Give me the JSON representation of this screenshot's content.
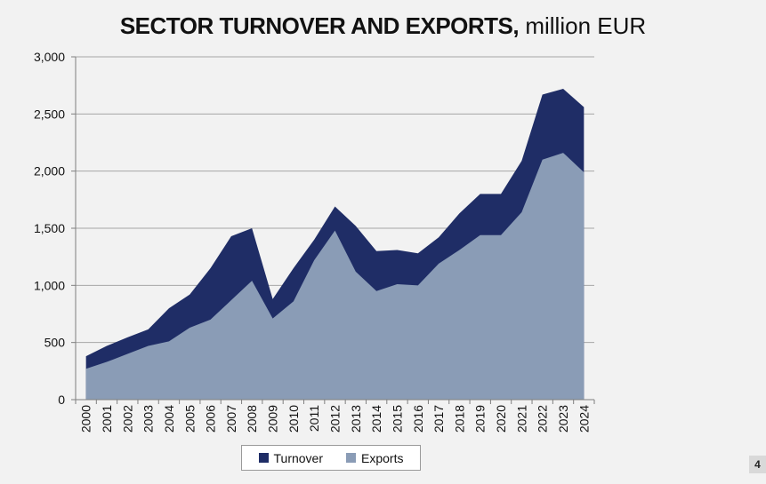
{
  "title": {
    "main": "SECTOR TURNOVER AND EXPORTS,",
    "unit": " million EUR"
  },
  "page_number": "4",
  "colors": {
    "turnover": "#1f2d66",
    "exports": "#8a9cb6",
    "grid": "#a6a6a6",
    "axis": "#7f7f7f"
  },
  "chart_data": {
    "type": "area",
    "title": "SECTOR TURNOVER AND EXPORTS, million EUR",
    "x": [
      "2000",
      "2001",
      "2002",
      "2003",
      "2004",
      "2005",
      "2006",
      "2007",
      "2008",
      "2009",
      "2010",
      "2011",
      "2012",
      "2013",
      "2014",
      "2015",
      "2016",
      "2017",
      "2018",
      "2019",
      "2020",
      "2021",
      "2022",
      "2023",
      "2024"
    ],
    "series": [
      {
        "name": "Turnover",
        "values": [
          380,
          470,
          545,
          615,
          800,
          920,
          1150,
          1430,
          1500,
          880,
          1150,
          1400,
          1690,
          1520,
          1300,
          1310,
          1280,
          1420,
          1630,
          1800,
          1800,
          2090,
          2670,
          2720,
          2560
        ]
      },
      {
        "name": "Exports",
        "values": [
          270,
          330,
          400,
          470,
          510,
          630,
          700,
          870,
          1040,
          710,
          860,
          1220,
          1480,
          1120,
          950,
          1010,
          1000,
          1190,
          1310,
          1440,
          1440,
          1640,
          2100,
          2160,
          1990
        ]
      }
    ],
    "ylim": [
      0,
      3000
    ],
    "yticks": [
      0,
      500,
      1000,
      1500,
      2000,
      2500,
      3000
    ],
    "ytick_labels": [
      "0",
      "500",
      "1,000",
      "1,500",
      "2,000",
      "2,500",
      "3,000"
    ],
    "grid": true,
    "legend": "bottom"
  }
}
